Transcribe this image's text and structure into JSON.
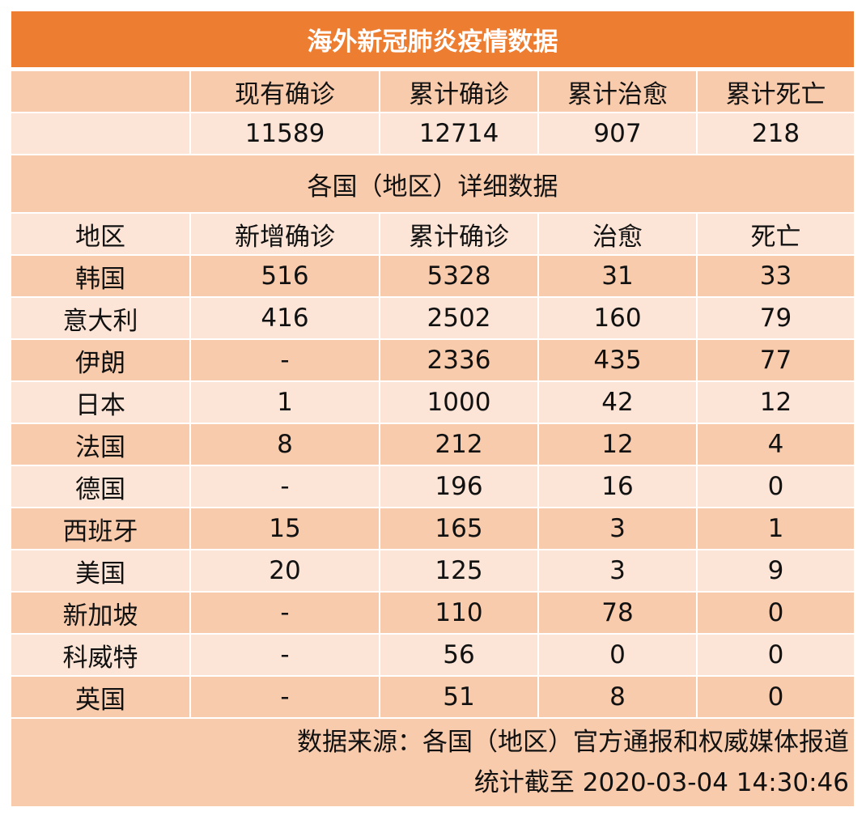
{
  "title": "海外新冠肺炎疫情数据",
  "summary": {
    "headers": [
      "",
      "现有确诊",
      "累计确诊",
      "累计治愈",
      "累计死亡"
    ],
    "values": [
      "",
      "11589",
      "12714",
      "907",
      "218"
    ]
  },
  "detail_title": "各国（地区）详细数据",
  "detail": {
    "headers": [
      "地区",
      "新增确诊",
      "累计确诊",
      "治愈",
      "死亡"
    ],
    "rows": [
      [
        "韩国",
        "516",
        "5328",
        "31",
        "33"
      ],
      [
        "意大利",
        "416",
        "2502",
        "160",
        "79"
      ],
      [
        "伊朗",
        "-",
        "2336",
        "435",
        "77"
      ],
      [
        "日本",
        "1",
        "1000",
        "42",
        "12"
      ],
      [
        "法国",
        "8",
        "212",
        "12",
        "4"
      ],
      [
        "德国",
        "-",
        "196",
        "16",
        "0"
      ],
      [
        "西班牙",
        "15",
        "165",
        "3",
        "1"
      ],
      [
        "美国",
        "20",
        "125",
        "3",
        "9"
      ],
      [
        "新加坡",
        "-",
        "110",
        "78",
        "0"
      ],
      [
        "科威特",
        "-",
        "56",
        "0",
        "0"
      ],
      [
        "英国",
        "-",
        "51",
        "8",
        "0"
      ]
    ]
  },
  "footer": {
    "source": "数据来源：各国（地区）官方通报和权威媒体报道",
    "timestamp": "统计截至 2020-03-04  14:30:46"
  },
  "colors": {
    "title_bg": "#ed7d31",
    "row_dark": "#f8cbad",
    "row_light": "#fce4d6"
  }
}
